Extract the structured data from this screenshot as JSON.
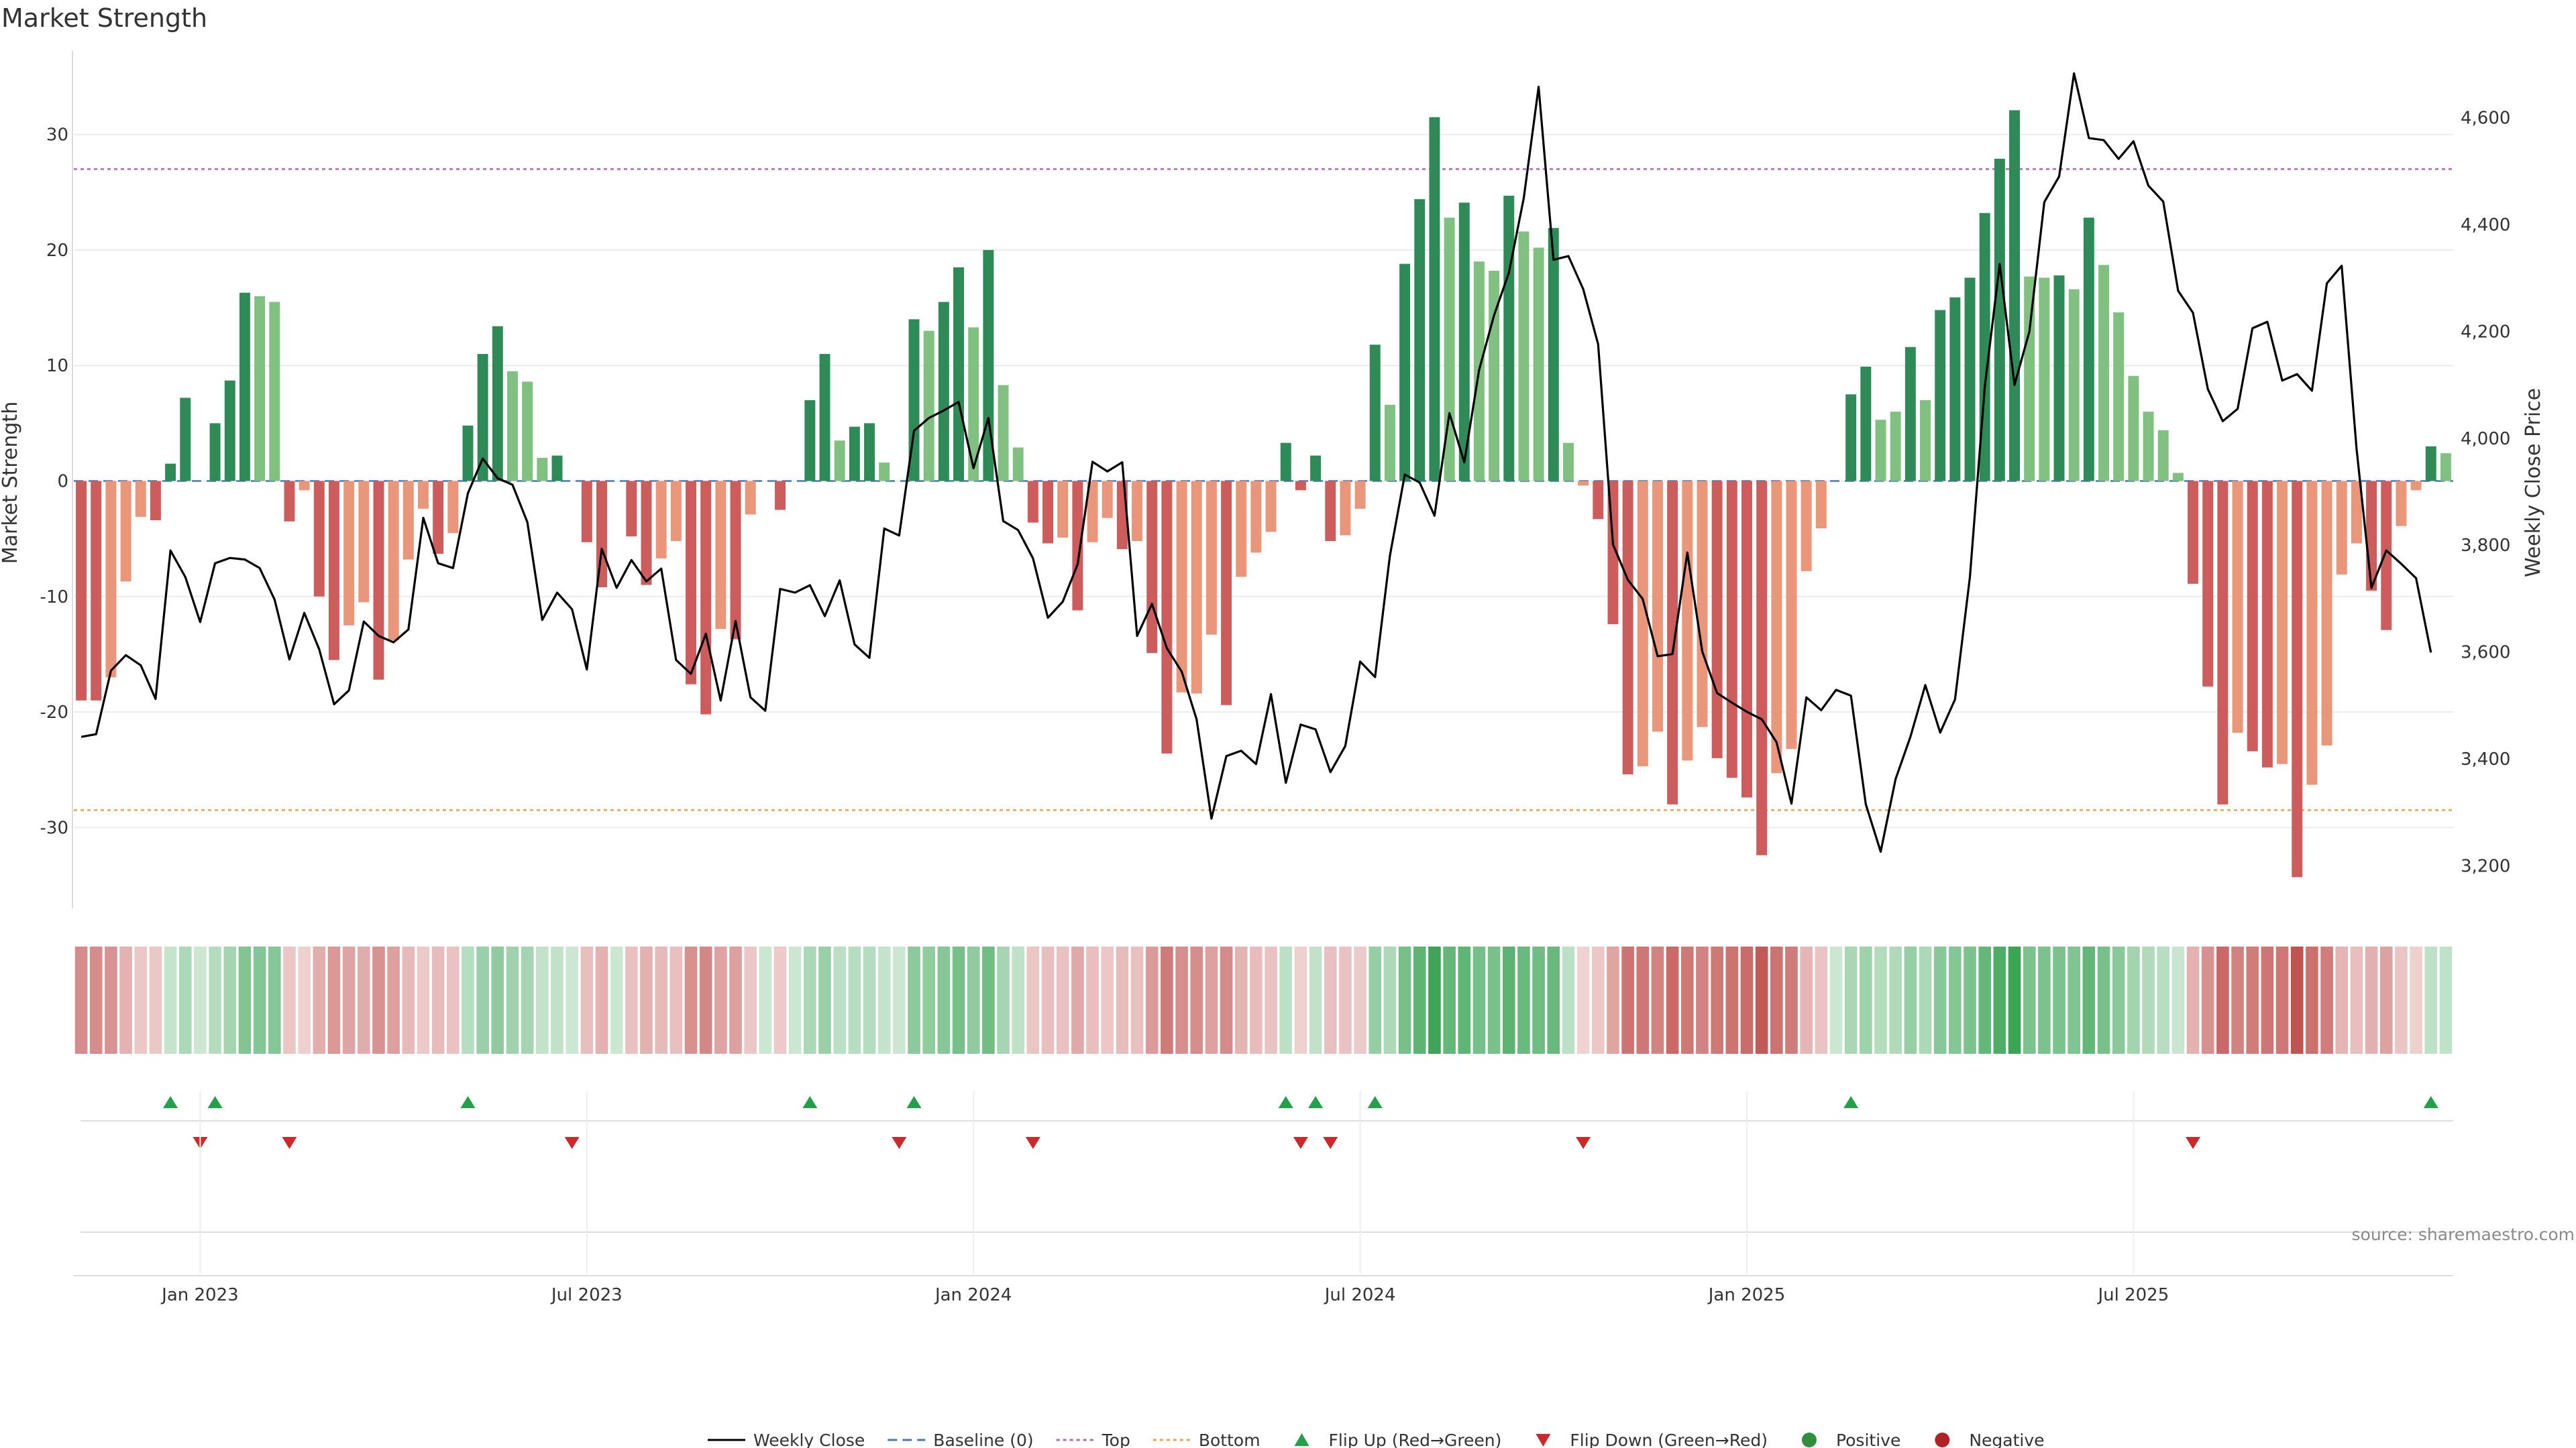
{
  "chart_data": {
    "type": "bar",
    "title": "Market Strength",
    "ylabel": "Market Strength",
    "y2label": "Weekly Close Price",
    "ylim": [
      -37,
      37
    ],
    "y2lim": [
      3120,
      4720
    ],
    "y_ticks": [
      -30,
      -20,
      -10,
      0,
      10,
      20,
      30
    ],
    "y2_ticks": [
      3200,
      3400,
      3600,
      3800,
      4000,
      4200,
      4400,
      4600
    ],
    "y2_tick_labels": [
      "3,200",
      "3,400",
      "3,600",
      "3,800",
      "4,000",
      "4,200",
      "4,400",
      "4,600"
    ],
    "x_ticks": [
      {
        "week": 8,
        "label": "Jan 2023"
      },
      {
        "week": 34,
        "label": "Jul 2023"
      },
      {
        "week": 60,
        "label": "Jan 2024"
      },
      {
        "week": 86,
        "label": "Jul 2024"
      },
      {
        "week": 112,
        "label": "Jan 2025"
      },
      {
        "week": 138,
        "label": "Jul 2025"
      }
    ],
    "top_threshold": 27,
    "bottom_threshold": -28.5,
    "colors": {
      "positive_dark": "#2e8b57",
      "positive_light": "#80c080",
      "negative_dark": "#cd5c5c",
      "negative_light": "#e9967a",
      "price_line": "#000000",
      "baseline": "#4a7ab0",
      "top_line": "#b06ab8",
      "bottom_line": "#f0a050",
      "flip_up": "#23a04a",
      "flip_down": "#cc2a2a",
      "legend_positive": "#2f8f3a",
      "legend_negative": "#b22222"
    },
    "strength": [
      -19,
      -19,
      -17,
      -8.7,
      -3.1,
      -3.4,
      1.5,
      7.2,
      0,
      5,
      8.7,
      16.3,
      16,
      15.5,
      -3.5,
      -0.8,
      -10,
      -15.5,
      -12.5,
      -10.5,
      -17.2,
      -13.8,
      -6.8,
      -2.4,
      -6.3,
      -4.5,
      4.8,
      11,
      13.4,
      9.5,
      8.6,
      2,
      2.2,
      0,
      -5.3,
      -9.2,
      0,
      -4.8,
      -9,
      -6.7,
      -5.2,
      -17.6,
      -20.2,
      -12.8,
      -13.7,
      -2.9,
      0,
      -2.5,
      0,
      7,
      11,
      3.5,
      4.7,
      5,
      1.6,
      0,
      14,
      13,
      15.5,
      18.5,
      13.3,
      20,
      8.3,
      2.9,
      -3.6,
      -5.4,
      -4.9,
      -11.2,
      -5.3,
      -3.2,
      -5.9,
      -5.2,
      -14.9,
      -23.6,
      -18.3,
      -18.4,
      -13.3,
      -19.4,
      -8.3,
      -6.2,
      -4.4,
      3.3,
      -0.8,
      2.2,
      -5.2,
      -4.7,
      -2.4,
      11.8,
      6.6,
      18.8,
      24.4,
      31.5,
      22.8,
      24.1,
      19,
      18.2,
      24.7,
      21.6,
      20.2,
      21.9,
      3.3,
      -0.4,
      -3.3,
      -12.4,
      -25.4,
      -24.7,
      -21.7,
      -28,
      -24.2,
      -21.3,
      -24,
      -25.7,
      -27.4,
      -32.4,
      -25.3,
      -23.2,
      -7.8,
      -4.1,
      0,
      7.5,
      9.9,
      5.3,
      6,
      11.6,
      7,
      14.8,
      15.9,
      17.6,
      23.2,
      27.9,
      32.1,
      17.7,
      17.6,
      17.8,
      16.6,
      22.8,
      18.7,
      14.6,
      9.1,
      6,
      4.4,
      0.7,
      -8.9,
      -17.8,
      -28,
      -21.8,
      -23.4,
      -24.8,
      -24.5,
      -34.3,
      -26.3,
      -22.9,
      -8.1,
      -5.4,
      -9.5,
      -12.9,
      -3.9,
      -0.8,
      3,
      2.4
    ],
    "shade": [
      "d",
      "d",
      "l",
      "l",
      "l",
      "d",
      "d",
      "d",
      "d",
      "d",
      "d",
      "d",
      "l",
      "l",
      "d",
      "l",
      "d",
      "d",
      "l",
      "l",
      "d",
      "l",
      "l",
      "l",
      "d",
      "l",
      "d",
      "d",
      "d",
      "l",
      "l",
      "l",
      "d",
      "d",
      "d",
      "d",
      "d",
      "d",
      "d",
      "l",
      "l",
      "d",
      "d",
      "l",
      "d",
      "l",
      "d",
      "d",
      "d",
      "d",
      "d",
      "l",
      "d",
      "d",
      "l",
      "d",
      "d",
      "l",
      "d",
      "d",
      "l",
      "d",
      "l",
      "l",
      "d",
      "d",
      "l",
      "d",
      "l",
      "l",
      "d",
      "l",
      "d",
      "d",
      "l",
      "l",
      "l",
      "d",
      "l",
      "l",
      "l",
      "d",
      "d",
      "d",
      "d",
      "l",
      "l",
      "d",
      "l",
      "d",
      "d",
      "d",
      "l",
      "d",
      "l",
      "l",
      "d",
      "l",
      "l",
      "d",
      "l",
      "l",
      "d",
      "d",
      "d",
      "l",
      "l",
      "d",
      "l",
      "l",
      "d",
      "d",
      "d",
      "d",
      "l",
      "l",
      "l",
      "l",
      "d",
      "d",
      "d",
      "l",
      "l",
      "d",
      "l",
      "d",
      "d",
      "d",
      "d",
      "d",
      "d",
      "l",
      "l",
      "d",
      "l",
      "d",
      "l",
      "l",
      "l",
      "l",
      "l",
      "l",
      "d",
      "d",
      "d",
      "l",
      "d",
      "d",
      "l",
      "d",
      "l",
      "l",
      "l",
      "l",
      "d",
      "d",
      "l",
      "l",
      "d",
      "l"
    ],
    "price": [
      3441,
      3446,
      3565,
      3594,
      3575,
      3512,
      3790,
      3740,
      3656,
      3766,
      3776,
      3773,
      3757,
      3698,
      3586,
      3673,
      3605,
      3502,
      3528,
      3657,
      3630,
      3618,
      3642,
      3851,
      3766,
      3757,
      3897,
      3962,
      3925,
      3913,
      3843,
      3660,
      3711,
      3680,
      3567,
      3793,
      3720,
      3772,
      3732,
      3756,
      3585,
      3559,
      3634,
      3509,
      3658,
      3515,
      3490,
      3718,
      3711,
      3725,
      3667,
      3734,
      3614,
      3589,
      3831,
      3818,
      4014,
      4038,
      4052,
      4068,
      3944,
      4038,
      3845,
      3828,
      3775,
      3664,
      3694,
      3764,
      3956,
      3938,
      3955,
      3630,
      3690,
      3607,
      3563,
      3474,
      3288,
      3405,
      3415,
      3390,
      3521,
      3355,
      3464,
      3455,
      3375,
      3424,
      3582,
      3553,
      3780,
      3932,
      3917,
      3855,
      4047,
      3955,
      4128,
      4230,
      4310,
      4450,
      4658,
      4334,
      4341,
      4279,
      4176,
      3801,
      3735,
      3699,
      3592,
      3596,
      3786,
      3601,
      3523,
      3505,
      3488,
      3474,
      3431,
      3316,
      3515,
      3491,
      3529,
      3518,
      3315,
      3226,
      3362,
      3441,
      3538,
      3449,
      3511,
      3740,
      4097,
      4326,
      4100,
      4200,
      4442,
      4490,
      4683,
      4562,
      4558,
      4523,
      4556,
      4473,
      4443,
      4276,
      4235,
      4092,
      4032,
      4055,
      4206,
      4218,
      4108,
      4120,
      4089,
      4290,
      4323,
      3980,
      3720,
      3790,
      3765,
      3738,
      3599
    ]
  },
  "legend": [
    {
      "label": "Weekly Close",
      "key": "weekly-close"
    },
    {
      "label": "Baseline (0)",
      "key": "baseline"
    },
    {
      "label": "Top",
      "key": "top"
    },
    {
      "label": "Bottom",
      "key": "bottom"
    },
    {
      "label": "Flip Up (Red→Green)",
      "key": "flip-up"
    },
    {
      "label": "Flip Down (Green→Red)",
      "key": "flip-down"
    },
    {
      "label": "Positive",
      "key": "positive"
    },
    {
      "label": "Negative",
      "key": "negative"
    }
  ],
  "source_text": "source: sharemaestro.com"
}
